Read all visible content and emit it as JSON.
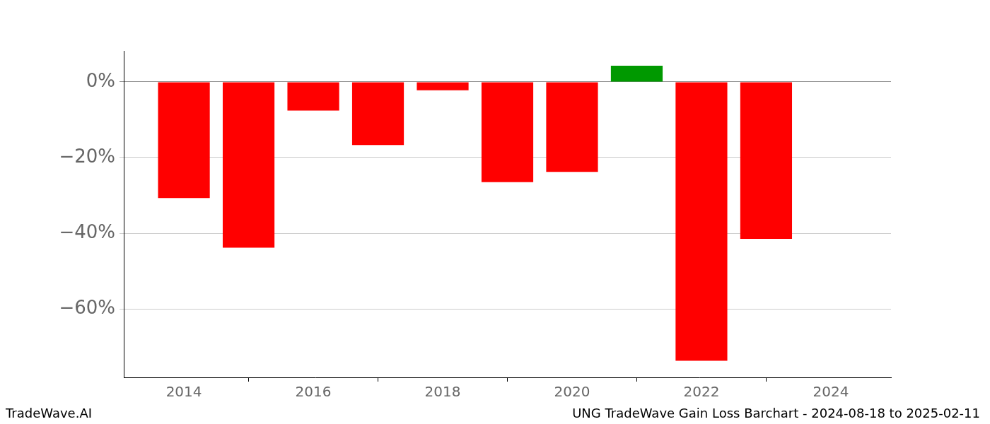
{
  "chart_data": {
    "type": "bar",
    "title": "UNG TradeWave Gain Loss Barchart - 2024-08-18 to 2025-02-11",
    "annotations": [
      "TradeWave.AI"
    ],
    "x": [
      2014,
      2015,
      2016,
      2017,
      2018,
      2019,
      2020,
      2021,
      2022,
      2023
    ],
    "values": [
      -30.7,
      -43.8,
      -7.6,
      -16.7,
      -2.2,
      -26.5,
      -23.8,
      4.3,
      -73.7,
      -41.5
    ],
    "colors": [
      "#ff0000",
      "#ff0000",
      "#ff0000",
      "#ff0000",
      "#ff0000",
      "#ff0000",
      "#ff0000",
      "#009900",
      "#ff0000",
      "#ff0000"
    ],
    "xlim": [
      2013.07,
      2024.93
    ],
    "xticks": [
      2014,
      2016,
      2018,
      2020,
      2022,
      2024
    ],
    "ylim": [
      -78.1,
      8.2
    ],
    "yticks": [
      {
        "value": 0,
        "label": "0%"
      },
      {
        "value": -20,
        "label": "−20%"
      },
      {
        "value": -40,
        "label": "−40%"
      },
      {
        "value": -60,
        "label": "−60%"
      }
    ],
    "grid": "y"
  }
}
